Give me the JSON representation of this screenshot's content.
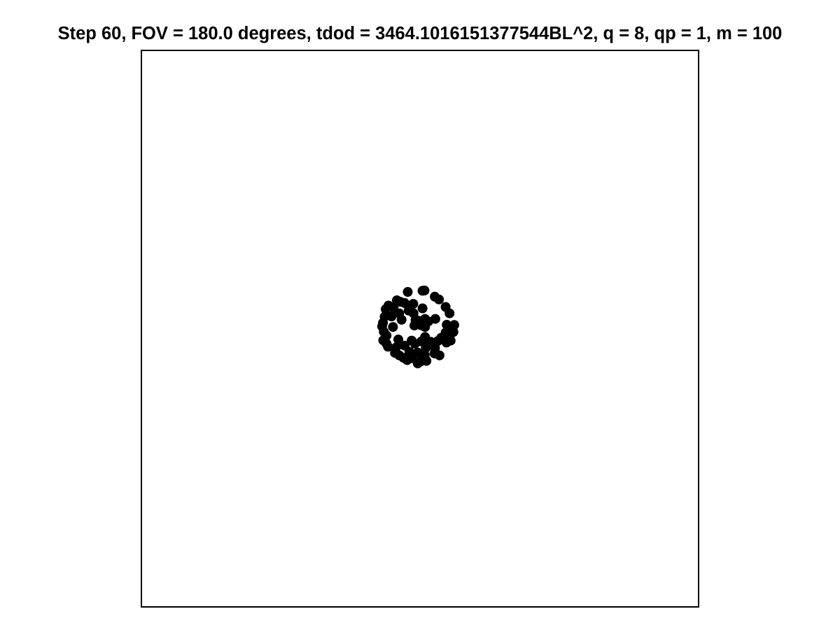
{
  "chart_data": {
    "type": "scatter",
    "title": "Step 60, FOV = 180.0 degrees, tdod = 3464.1016151377544BL^2, q = 8, qp = 1, m = 100",
    "xlabel": "",
    "ylabel": "",
    "xlim": [
      -100,
      100
    ],
    "ylim": [
      -100,
      100
    ],
    "axis_ticks": "none",
    "grid": false,
    "legend": "none",
    "marker_color": "#000000",
    "points": [
      [
        1.6,
        13.7
      ],
      [
        0.9,
        13.6
      ],
      [
        -4.4,
        13.2
      ],
      [
        5.3,
        11.5
      ],
      [
        6.8,
        10.5
      ],
      [
        -7.0,
        9.6
      ],
      [
        -8.3,
        10.2
      ],
      [
        -5.5,
        9.2
      ],
      [
        -2.4,
        8.9
      ],
      [
        0.9,
        7.3
      ],
      [
        9.2,
        7.8
      ],
      [
        10.6,
        5.5
      ],
      [
        -11.3,
        8.3
      ],
      [
        -12.3,
        7.0
      ],
      [
        -9.5,
        7.6
      ],
      [
        -7.5,
        5.5
      ],
      [
        -3.5,
        7.3
      ],
      [
        -2.3,
        5.5
      ],
      [
        -12.7,
        4.3
      ],
      [
        -13.3,
        2.1
      ],
      [
        -10.2,
        4.4
      ],
      [
        -6.6,
        3.2
      ],
      [
        -1.6,
        3.1
      ],
      [
        1.8,
        3.5
      ],
      [
        3.0,
        2.6
      ],
      [
        5.5,
        3.5
      ],
      [
        -13.6,
        0.8
      ],
      [
        -9.7,
        0.6
      ],
      [
        -2.0,
        1.1
      ],
      [
        0.4,
        1.2
      ],
      [
        1.8,
        0.6
      ],
      [
        -0.7,
        2.9
      ],
      [
        9.6,
        1.4
      ],
      [
        12.3,
        1.3
      ],
      [
        -13.0,
        -1.1
      ],
      [
        -12.0,
        -2.5
      ],
      [
        11.0,
        -0.2
      ],
      [
        9.2,
        -1.4
      ],
      [
        -13.2,
        -4.2
      ],
      [
        -12.0,
        -5.4
      ],
      [
        -7.8,
        -3.9
      ],
      [
        -3.0,
        -4.3
      ],
      [
        0.5,
        -4.6
      ],
      [
        3.8,
        -4.7
      ],
      [
        10.6,
        -2.8
      ],
      [
        12.0,
        -1.2
      ],
      [
        8.3,
        -3.6
      ],
      [
        7.6,
        -3.3
      ],
      [
        -11.5,
        -6.5
      ],
      [
        -8.6,
        -6.8
      ],
      [
        -5.5,
        -6.1
      ],
      [
        -1.8,
        -5.4
      ],
      [
        2.1,
        -6.9
      ],
      [
        5.4,
        -7.0
      ],
      [
        9.5,
        -5.0
      ],
      [
        11.0,
        -4.3
      ],
      [
        -9.0,
        -8.7
      ],
      [
        -7.4,
        -9.6
      ],
      [
        -3.8,
        -8.3
      ],
      [
        -0.8,
        -8.6
      ],
      [
        1.7,
        -9.5
      ],
      [
        5.2,
        -8.9
      ],
      [
        7.0,
        -9.6
      ],
      [
        -5.9,
        -10.5
      ],
      [
        -2.8,
        -10.6
      ],
      [
        0.2,
        -11.8
      ],
      [
        2.3,
        -11.6
      ],
      [
        -0.8,
        -12.5
      ],
      [
        -4.6,
        -11.3
      ],
      [
        6.3,
        -4.5
      ],
      [
        1.8,
        -3.0
      ],
      [
        -4.1,
        6.5
      ]
    ]
  }
}
